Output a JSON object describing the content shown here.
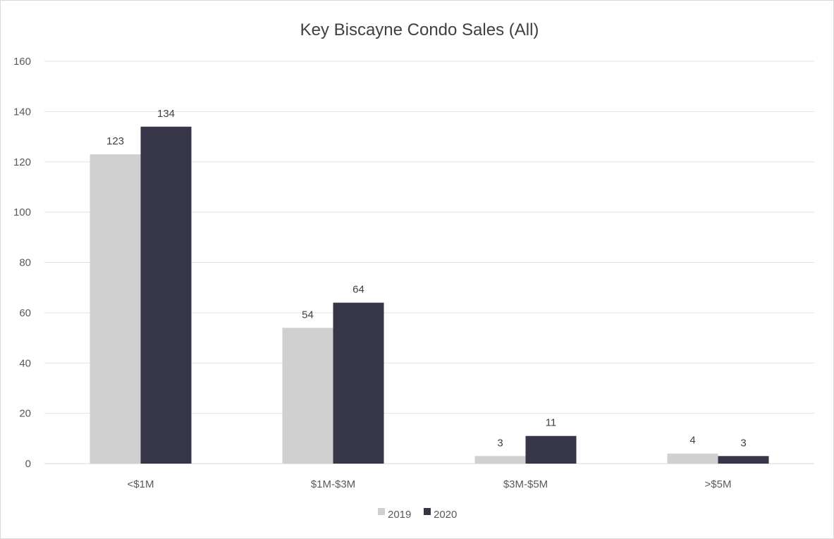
{
  "chart_data": {
    "type": "bar",
    "title": "Key Biscayne Condo Sales  (All)",
    "xlabel": "",
    "ylabel": "",
    "categories": [
      "<$1M",
      "$1M-$3M",
      "$3M-$5M",
      ">$5M"
    ],
    "series": [
      {
        "name": "2019",
        "values": [
          123,
          54,
          3,
          4
        ],
        "color": "#d0d0d0"
      },
      {
        "name": "2020",
        "values": [
          134,
          64,
          11,
          3
        ],
        "color": "#373649"
      }
    ],
    "ylim": [
      0,
      160
    ],
    "yticks": [
      0,
      20,
      40,
      60,
      80,
      100,
      120,
      140,
      160
    ],
    "grid": true,
    "legend_position": "bottom",
    "data_labels": true
  }
}
